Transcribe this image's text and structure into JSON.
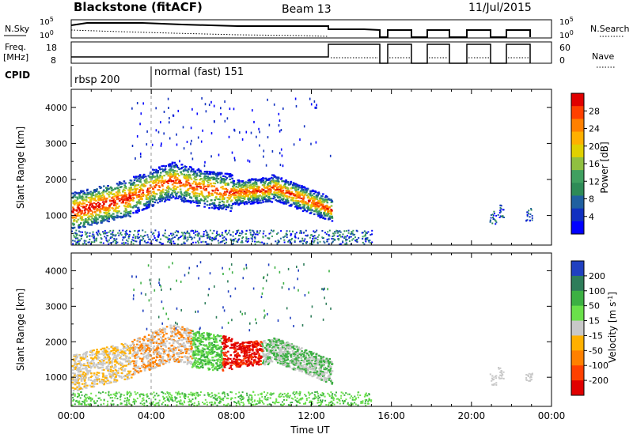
{
  "header": {
    "station": "Blackstone (fitACF)",
    "beam": "Beam 13",
    "date": "11/Jul/2015"
  },
  "nsky_panel": {
    "left_label": "N.Sky",
    "right_label": "N.Search",
    "left_ticks": [
      "10^5",
      "10^0"
    ],
    "right_ticks": [
      "10^5",
      "10^0"
    ]
  },
  "freq_panel": {
    "left_label_1": "Freq.",
    "left_label_2": "[MHz]",
    "left_ticks": [
      "18",
      "8"
    ],
    "right_label": "Nave",
    "right_ticks": [
      "60",
      "0"
    ]
  },
  "cpid": {
    "label": "CPID",
    "segments": [
      {
        "name": "rbsp 200",
        "start_hour": 0
      },
      {
        "name": "normal (fast) 151",
        "start_hour": 4
      }
    ]
  },
  "chart_data": [
    {
      "type": "heatmap",
      "panel": "power",
      "ylabel": "Slant Range [km]",
      "xlim_hours": [
        0,
        24
      ],
      "ylim_km": [
        180,
        4500
      ],
      "yticks": [
        1000,
        2000,
        3000,
        4000
      ],
      "colorbar": {
        "label": "Power [dB]",
        "ticks": [
          "28",
          "24",
          "20",
          "16",
          "12",
          "8",
          "4"
        ],
        "colors": [
          "#e00000",
          "#ff4000",
          "#ff8000",
          "#ffb000",
          "#e0d000",
          "#90c040",
          "#40a060",
          "#2e8b57",
          "#2060a0",
          "#1030c0",
          "#0000ff"
        ]
      }
    },
    {
      "type": "heatmap",
      "panel": "velocity",
      "xlabel": "Time UT",
      "ylabel": "Slant Range [km]",
      "xlim_hours": [
        0,
        24
      ],
      "ylim_km": [
        180,
        4500
      ],
      "xticks": [
        "00:00",
        "04:00",
        "08:00",
        "12:00",
        "16:00",
        "20:00",
        "00:00"
      ],
      "yticks": [
        1000,
        2000,
        3000,
        4000
      ],
      "colorbar": {
        "label": "Velocity [m s^-1]",
        "ticks": [
          "200",
          "100",
          "50",
          "15",
          "-15",
          "-50",
          "-100",
          "-200"
        ],
        "colors": [
          "#2040c0",
          "#2e7d5a",
          "#3cb043",
          "#6ae04a",
          "#c8c8c8",
          "#ffb000",
          "#ff8000",
          "#ff4000",
          "#e00000"
        ]
      }
    }
  ]
}
